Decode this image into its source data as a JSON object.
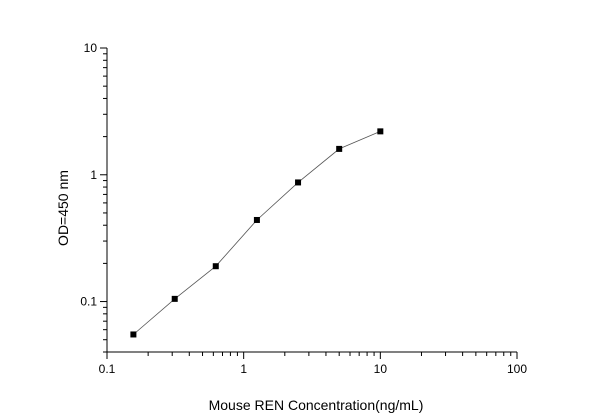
{
  "chart_data": {
    "type": "scatter",
    "title": "",
    "xlabel": "Mouse REN  Concentration(ng/mL)",
    "ylabel": "OD=450 nm",
    "xscale": "log",
    "yscale": "log",
    "xlim": [
      0.1,
      100
    ],
    "ylim": [
      0.04,
      10
    ],
    "grid": false,
    "legend": "none",
    "x_ticks": [
      "0.1",
      "1",
      "10",
      "100"
    ],
    "y_ticks": [
      "0.1",
      "1",
      "10"
    ],
    "connect_points": true,
    "marker": "square",
    "colors": {
      "line": "#555555",
      "marker": "#000000",
      "axis": "#000000"
    },
    "series": [
      {
        "x": [
          0.156,
          0.313,
          0.625,
          1.25,
          2.5,
          5,
          10
        ],
        "y": [
          0.055,
          0.105,
          0.19,
          0.44,
          0.87,
          1.6,
          2.2
        ]
      }
    ]
  }
}
